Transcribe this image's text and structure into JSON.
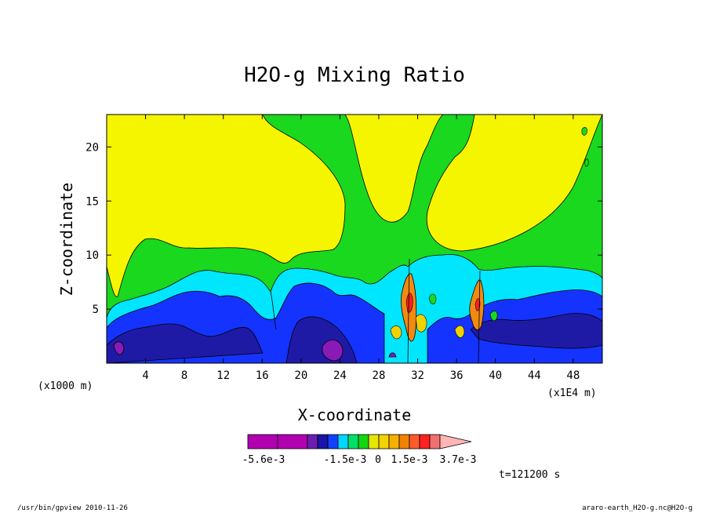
{
  "chart_data": {
    "type": "heatmap",
    "title": "H2O-g Mixing Ratio",
    "xlabel": "X-coordinate",
    "ylabel": "Z-coordinate",
    "x_unit_left": "(x1000 m)",
    "x_unit_right": "(x1E4 m)",
    "xlim": [
      0,
      51
    ],
    "ylim": [
      0,
      23
    ],
    "x_ticks": [
      4,
      8,
      12,
      16,
      20,
      24,
      28,
      32,
      36,
      40,
      44,
      48
    ],
    "y_ticks": [
      5,
      10,
      15,
      20
    ],
    "timestamp": "t=121200 s",
    "colorbar": {
      "labels": [
        "-5.6e-3",
        "-1.5e-3",
        "0",
        "1.5e-3",
        "3.7e-3"
      ],
      "colors": [
        "#b000b0",
        "#b000b0",
        "#6b1fb0",
        "#1b14a8",
        "#1240ff",
        "#00d6ff",
        "#00e066",
        "#13d613",
        "#e6e600",
        "#f2d200",
        "#f7b000",
        "#f08400",
        "#ff5a2a",
        "#ff2020",
        "#f07070",
        "#ffb6b6"
      ]
    },
    "regions": [
      {
        "level": "yellow",
        "color": "#f5f500"
      },
      {
        "level": "green",
        "color": "#19d81e"
      },
      {
        "level": "cyan",
        "color": "#00e6ff"
      },
      {
        "level": "blue",
        "color": "#1433ff"
      },
      {
        "level": "navy",
        "color": "#1f1aa5"
      },
      {
        "level": "purple",
        "color": "#8a1ab8"
      },
      {
        "level": "orange",
        "color": "#f08a10"
      }
    ]
  },
  "footer": {
    "left": "/usr/bin/gpview  2010-11-26",
    "right": "araro-earth_H2O-g.nc@H2O-g"
  }
}
